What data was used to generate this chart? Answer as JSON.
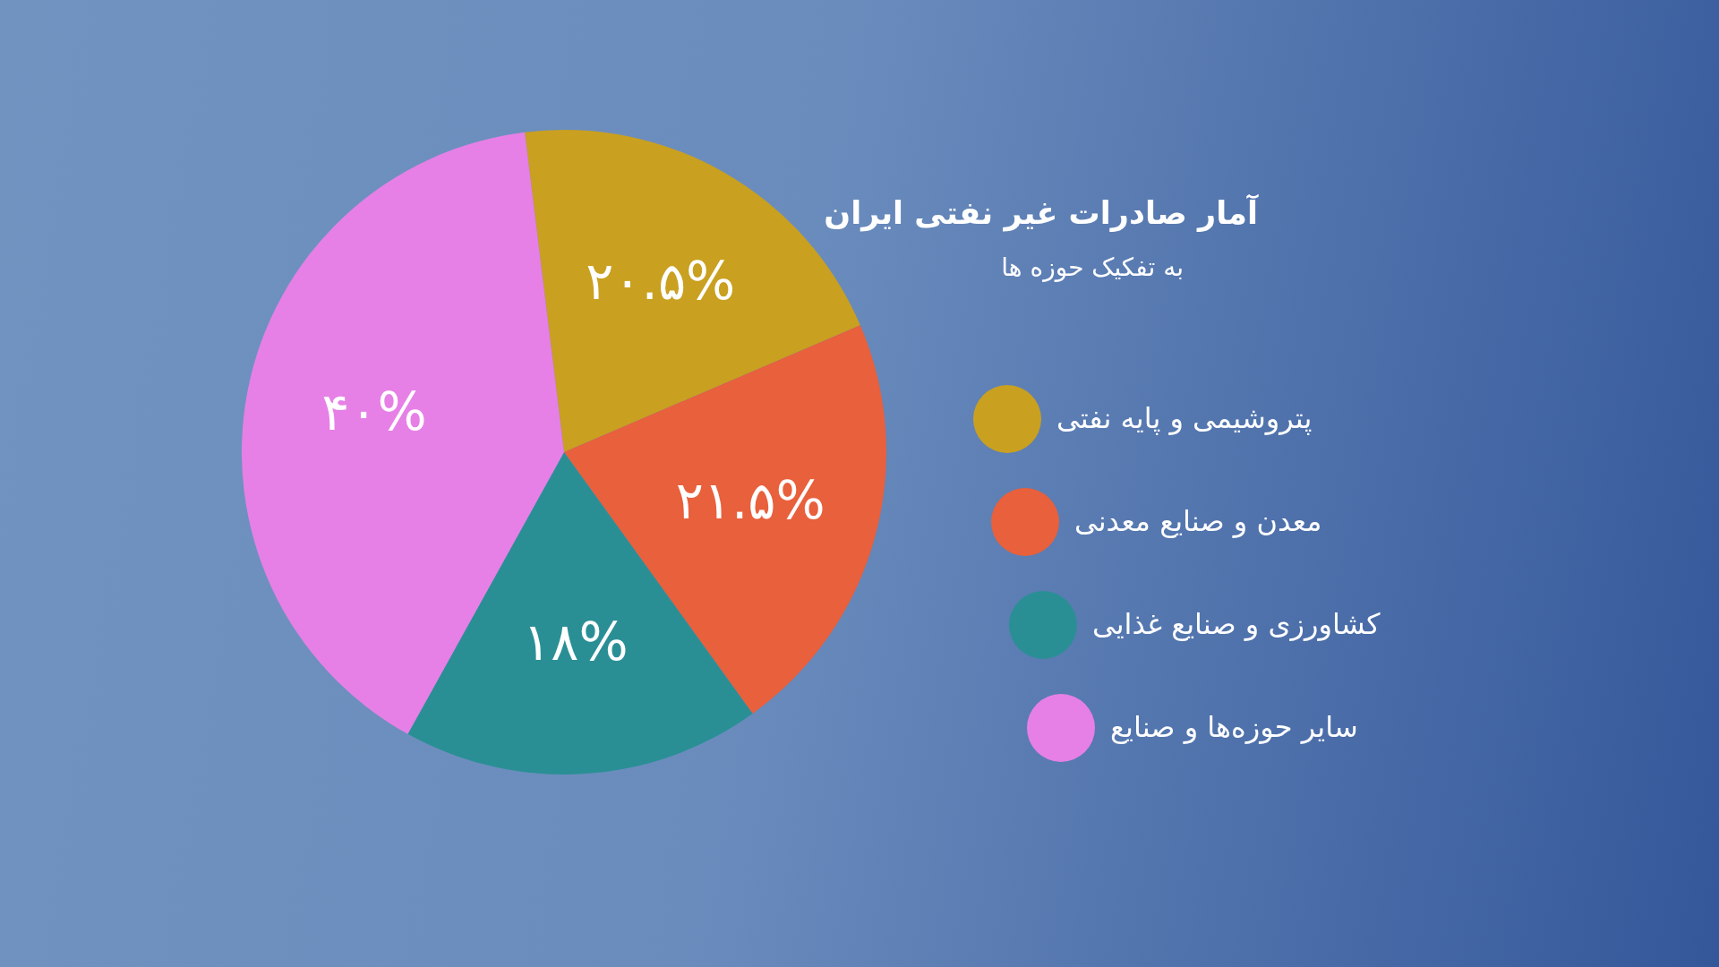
{
  "chart_data": {
    "type": "pie",
    "title": "آمار صادرات غیر نفتی ایران",
    "subtitle": "به تفکیک حوزه ها",
    "categories": [
      "پتروشیمی و پایه نفتی",
      "معدن و صنایع معدنی",
      "کشاورزی و صنایع غذایی",
      "سایر حوزه‌ها و صنایع"
    ],
    "values": [
      20.5,
      21.5,
      18,
      40
    ],
    "colors": [
      "#c9a020",
      "#e8603c",
      "#2a8f95",
      "#e680e6"
    ],
    "value_labels": [
      "۲۰.۵%",
      "۲۱.۵%",
      "۱۸%",
      "۴۰%"
    ],
    "legend": "right"
  }
}
